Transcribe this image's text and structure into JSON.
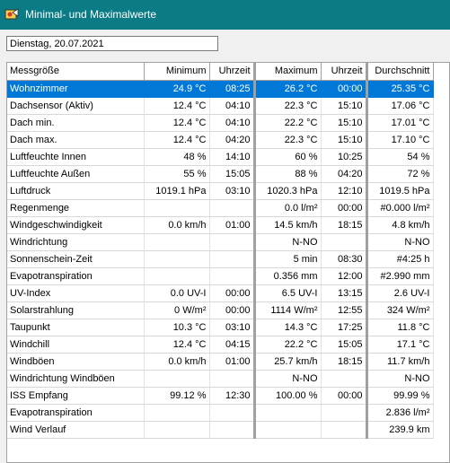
{
  "window": {
    "title": "Minimal- und Maximalwerte"
  },
  "date_field": {
    "value": "Dienstag, 20.07.2021"
  },
  "table": {
    "headers": [
      "Messgröße",
      "Minimum",
      "Uhrzeit",
      "Maximum",
      "Uhrzeit",
      "Durchschnitt"
    ],
    "rows": [
      [
        "Wohnzimmer",
        "24.9 °C",
        "08:25",
        "26.2 °C",
        "00:00",
        "25.35 °C"
      ],
      [
        "Dachsensor (Aktiv)",
        "12.4 °C",
        "04:10",
        "22.3 °C",
        "15:10",
        "17.06 °C"
      ],
      [
        "Dach min.",
        "12.4 °C",
        "04:10",
        "22.2 °C",
        "15:10",
        "17.01 °C"
      ],
      [
        "Dach max.",
        "12.4 °C",
        "04:20",
        "22.3 °C",
        "15:10",
        "17.10 °C"
      ],
      [
        "Luftfeuchte Innen",
        "48 %",
        "14:10",
        "60 %",
        "10:25",
        "54 %"
      ],
      [
        "Luftfeuchte Außen",
        "55 %",
        "15:05",
        "88 %",
        "04:20",
        "72 %"
      ],
      [
        "Luftdruck",
        "1019.1 hPa",
        "03:10",
        "1020.3 hPa",
        "12:10",
        "1019.5 hPa"
      ],
      [
        "Regenmenge",
        "",
        "",
        "0.0 l/m²",
        "00:00",
        "#0.000 l/m²"
      ],
      [
        "Windgeschwindigkeit",
        "0.0 km/h",
        "01:00",
        "14.5 km/h",
        "18:15",
        "4.8 km/h"
      ],
      [
        "Windrichtung",
        "",
        "",
        "N-NO",
        "",
        "N-NO"
      ],
      [
        "Sonnenschein-Zeit",
        "",
        "",
        "5 min",
        "08:30",
        "#4:25 h"
      ],
      [
        "Evapotranspiration",
        "",
        "",
        "0.356 mm",
        "12:00",
        "#2.990 mm"
      ],
      [
        "UV-Index",
        "0.0 UV-I",
        "00:00",
        "6.5 UV-I",
        "13:15",
        "2.6 UV-I"
      ],
      [
        "Solarstrahlung",
        "0 W/m²",
        "00:00",
        "1114 W/m²",
        "12:55",
        "324 W/m²"
      ],
      [
        "Taupunkt",
        "10.3 °C",
        "03:10",
        "14.3 °C",
        "17:25",
        "11.8 °C"
      ],
      [
        "Windchill",
        "12.4 °C",
        "04:15",
        "22.2 °C",
        "15:05",
        "17.1 °C"
      ],
      [
        "Windböen",
        "0.0 km/h",
        "01:00",
        "25.7 km/h",
        "18:15",
        "11.7 km/h"
      ],
      [
        "Windrichtung Windböen",
        "",
        "",
        "N-NO",
        "",
        "N-NO"
      ],
      [
        "ISS Empfang",
        "99.12 %",
        "12:30",
        "100.00 %",
        "00:00",
        "99.99 %"
      ],
      [
        "Evapotranspiration",
        "",
        "",
        "",
        "",
        "2.836 l/m²"
      ],
      [
        "Wind Verlauf",
        "",
        "",
        "",
        "",
        "239.9 km"
      ]
    ],
    "selected_row": 0
  },
  "colors": {
    "titlebar": "#0b7b86",
    "selection": "#0078d7"
  },
  "icons": {
    "app": "app-weather-icon"
  }
}
